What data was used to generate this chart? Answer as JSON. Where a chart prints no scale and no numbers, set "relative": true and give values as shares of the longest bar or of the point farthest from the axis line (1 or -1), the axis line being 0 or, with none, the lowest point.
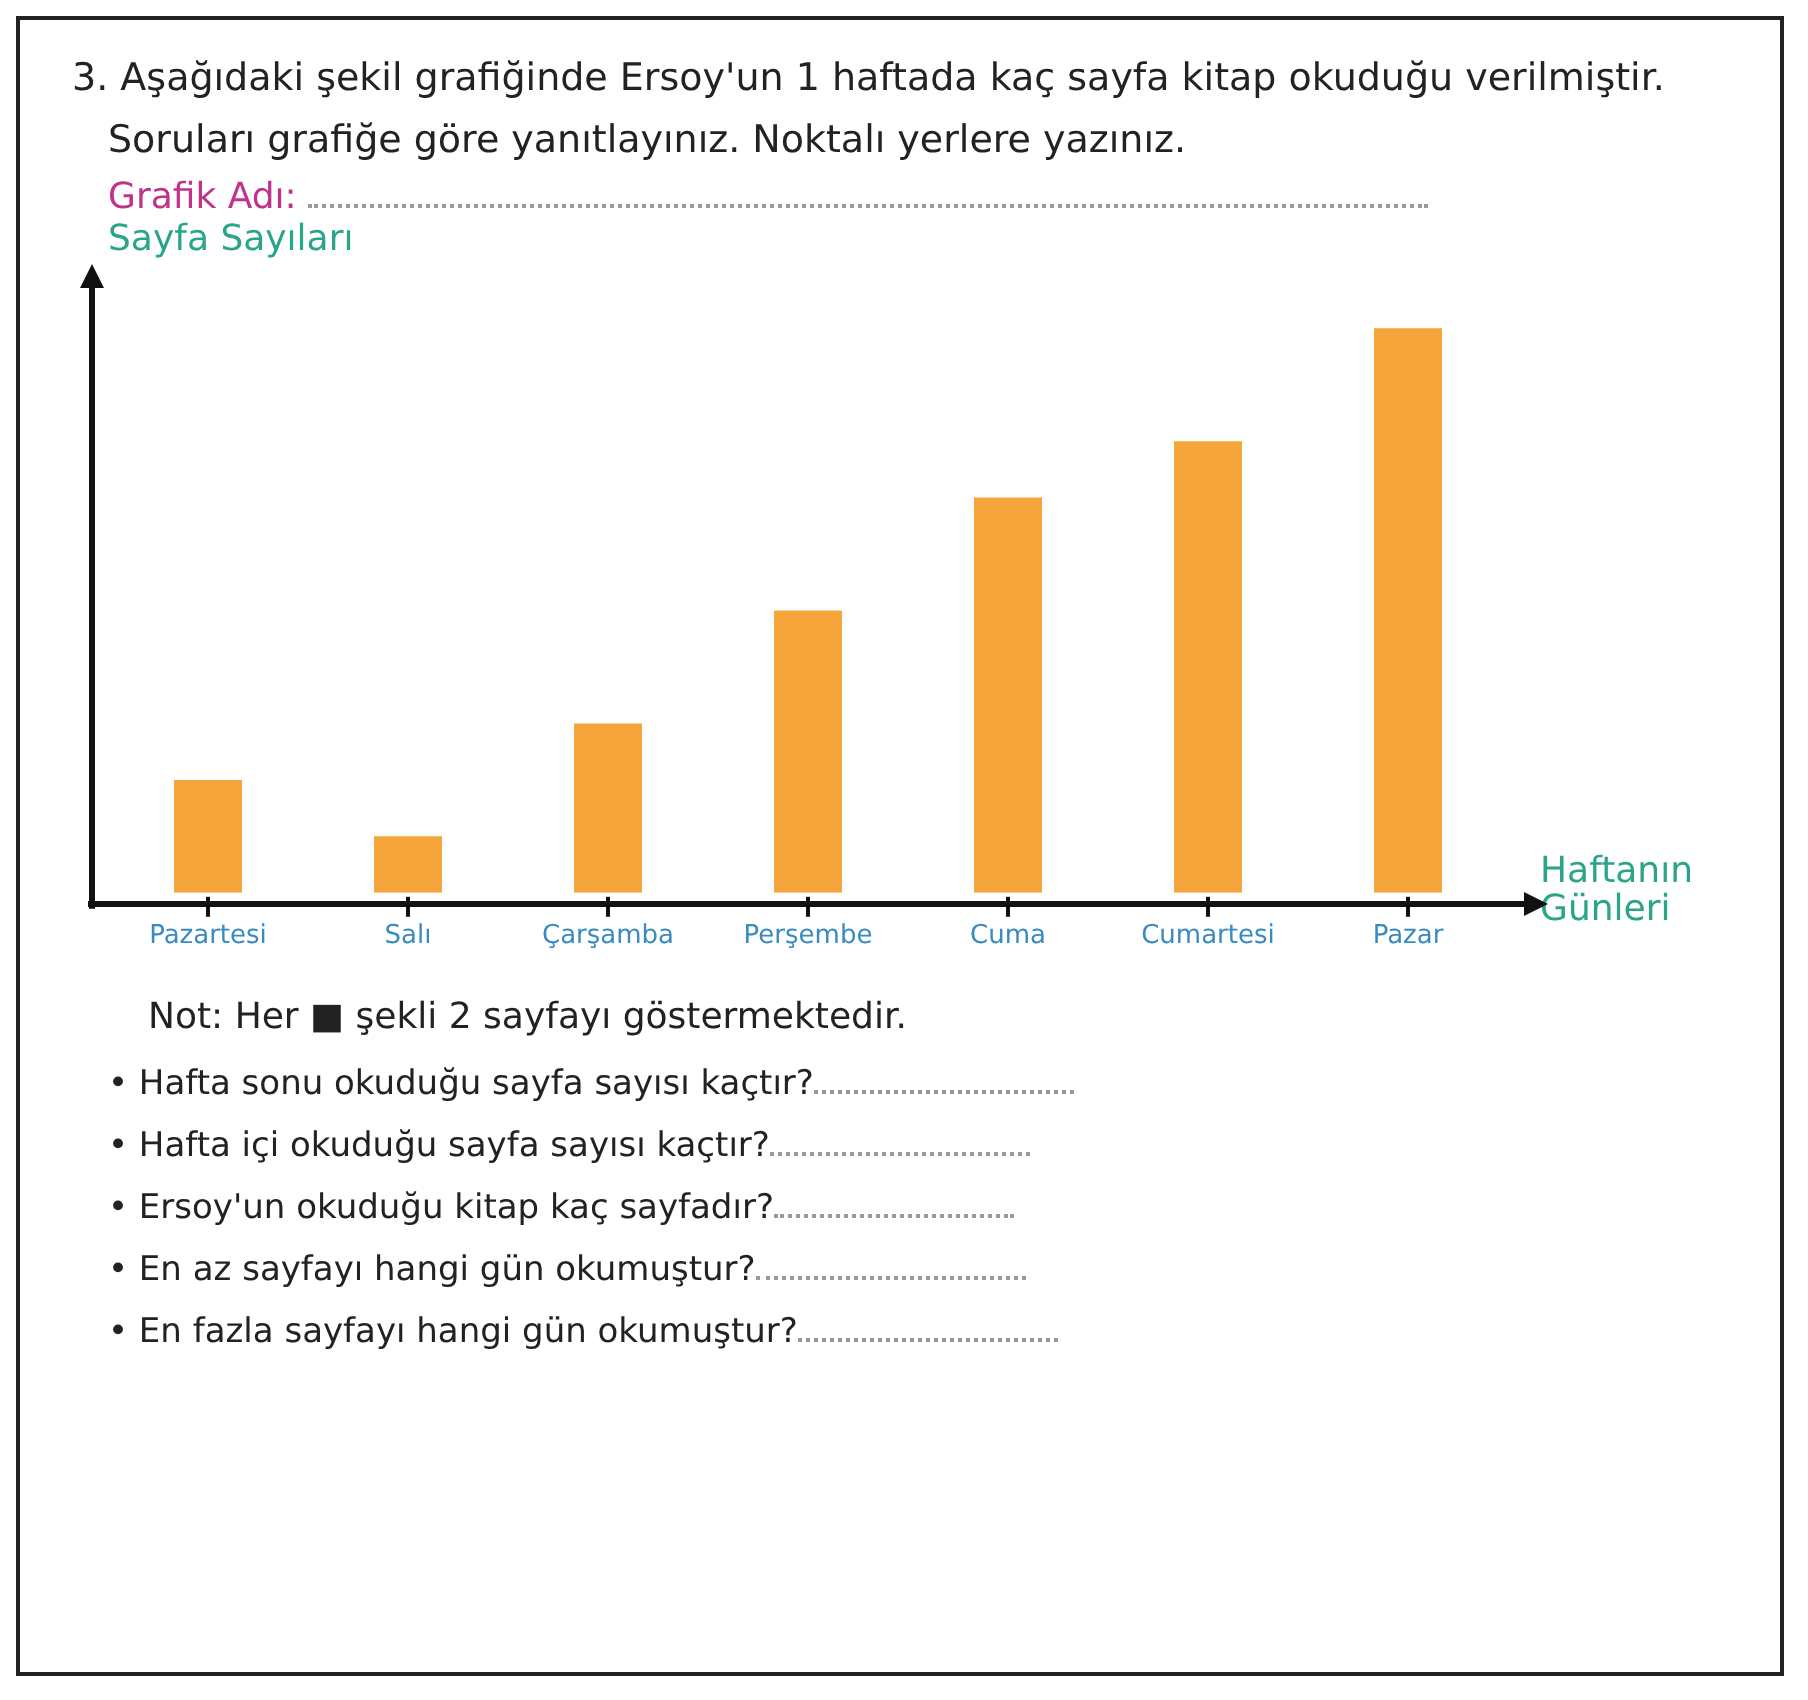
{
  "chart_data": {
    "type": "bar",
    "title": "3. Aşağıdaki şekil grafiğinde Ersoy'un 1 haftada kaç sayfa kitap okuduğu verilmiştir. Soruları grafiğe göre yanıtlayınız. Noktalı yerlere yazınız.",
    "ylabel": "Sayfa Sayıları",
    "xlabel": "Haftanın Günleri",
    "categories": [
      "Pazartesi",
      "Salı",
      "Çarşamba",
      "Perşembe",
      "Cuma",
      "Cumartesi",
      "Pazar"
    ],
    "values": [
      0.2,
      0.1,
      0.3,
      0.5,
      0.7,
      0.8,
      1
    ],
    "color": "#f5a53a",
    "relative": true,
    "grid": false,
    "legend": false,
    "annotations": [
      "Grafik Adı:",
      "Not: Her ■ şekli 2 sayfayı göstermektedir.",
      "• Hafta sonu okuduğu sayfa sayısı kaçtır?",
      "• Hafta içi okuduğu sayfa sayısı kaçtır?",
      "• Ersoy'un okuduğu kitap kaç sayfadır?",
      "• En az sayfayı hangi gün okumuştur?",
      "• En fazla sayfayı hangi gün okumuştur?"
    ]
  }
}
